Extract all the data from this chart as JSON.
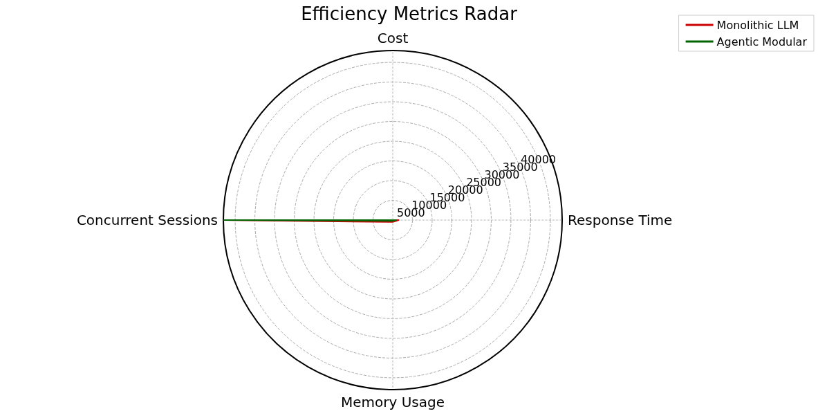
{
  "chart_data": {
    "type": "radar",
    "title": "Efficiency Metrics Radar",
    "categories": [
      "Cost",
      "Response Time",
      "Memory Usage",
      "Concurrent Sessions"
    ],
    "series": [
      {
        "name": "Monolithic LLM",
        "color": "#cc0000",
        "values": [
          0,
          1500,
          500,
          43000
        ]
      },
      {
        "name": "Agentic Modular",
        "color": "#006400",
        "values": [
          0,
          800,
          200,
          43000
        ]
      }
    ],
    "ylim": [
      0,
      43000
    ],
    "yticks": [
      5000,
      10000,
      15000,
      20000,
      25000,
      30000,
      35000,
      40000
    ],
    "grid": true,
    "legend": "top right",
    "marker": "none",
    "line_style": "solid"
  }
}
